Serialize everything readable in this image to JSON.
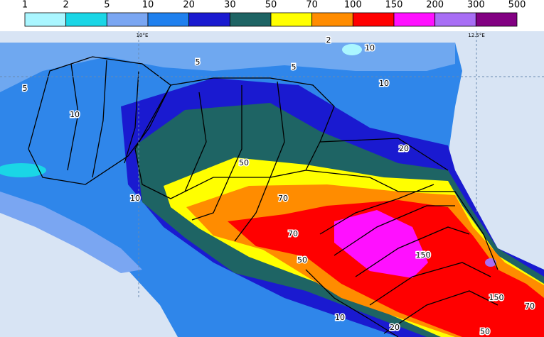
{
  "legend": {
    "labels": [
      "1",
      "2",
      "5",
      "10",
      "20",
      "30",
      "50",
      "70",
      "100",
      "150",
      "200",
      "300",
      "500"
    ],
    "colors": [
      "#aaf6ff",
      "#1ad6e6",
      "#7aa6f2",
      "#1f80ee",
      "#1a1ad0",
      "#1e6464",
      "#ffff00",
      "#ff8c00",
      "#ff0000",
      "#ff10ff",
      "#a86ef5",
      "#820082"
    ]
  },
  "map": {
    "lon_labels": [
      "10°E",
      "12.5°E"
    ],
    "contour_labels": [
      "2",
      "5",
      "10",
      "5",
      "5",
      "10",
      "10",
      "20",
      "50",
      "70",
      "10",
      "70",
      "50",
      "150",
      "150",
      "70",
      "10",
      "20",
      "50"
    ]
  }
}
